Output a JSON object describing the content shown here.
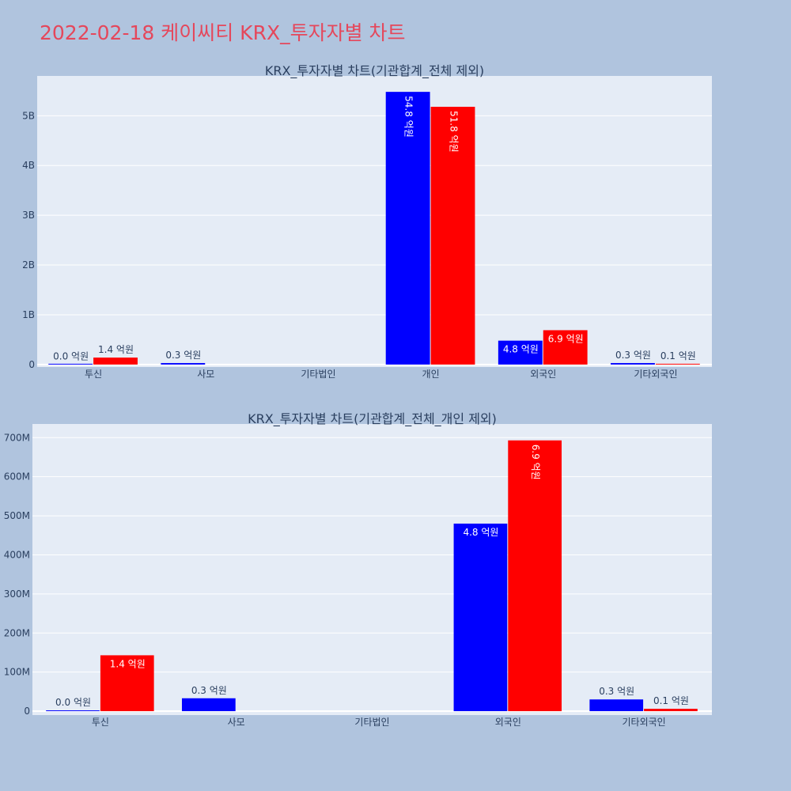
{
  "page": {
    "title": "2022-02-18 케이씨티 KRX_투자자별 차트"
  },
  "colors": {
    "background": "#b0c4de",
    "plot_bg": "#e5ecf6",
    "title": "#e5475b",
    "series_a": "#0000ff",
    "series_b": "#ff0000"
  },
  "chart_data": [
    {
      "type": "bar",
      "title": "KRX_투자자별 차트(기관합계_전체 제외)",
      "categories": [
        "투신",
        "사모",
        "기타법인",
        "개인",
        "외국인",
        "기타외국인"
      ],
      "series": [
        {
          "color": "#0000ff",
          "values": [
            2000000,
            30000000,
            null,
            5480000000,
            480000000,
            30000000
          ],
          "labels": [
            "0.0 억원",
            "0.3 억원",
            null,
            "54.8 억원",
            "4.8 억원",
            "0.3 억원"
          ]
        },
        {
          "color": "#ff0000",
          "values": [
            140000000,
            null,
            null,
            5180000000,
            690000000,
            10000000
          ],
          "labels": [
            "1.4 억원",
            null,
            null,
            "51.8 억원",
            "6.9 억원",
            "0.1 억원"
          ]
        }
      ],
      "ylim": [
        -50000000,
        5800000000
      ],
      "yticks": [
        0,
        1000000000,
        2000000000,
        3000000000,
        4000000000,
        5000000000
      ],
      "ytick_labels": [
        "0",
        "1B",
        "2B",
        "3B",
        "4B",
        "5B"
      ],
      "grid": true,
      "legend": "none"
    },
    {
      "type": "bar",
      "title": "KRX_투자자별 차트(기관합계_전체_개인 제외)",
      "categories": [
        "투신",
        "사모",
        "기타법인",
        "외국인",
        "기타외국인"
      ],
      "series": [
        {
          "color": "#0000ff",
          "values": [
            2000000,
            33000000,
            null,
            480000000,
            30000000
          ],
          "labels": [
            "0.0 억원",
            "0.3 억원",
            null,
            "4.8 억원",
            "0.3 억원"
          ]
        },
        {
          "color": "#ff0000",
          "values": [
            143000000,
            null,
            null,
            693000000,
            6000000
          ],
          "labels": [
            "1.4 억원",
            null,
            null,
            "6.9 억원",
            "0.1 억원"
          ]
        }
      ],
      "ylim": [
        -10000000,
        735000000
      ],
      "yticks": [
        0,
        100000000,
        200000000,
        300000000,
        400000000,
        500000000,
        600000000,
        700000000
      ],
      "ytick_labels": [
        "0",
        "100M",
        "200M",
        "300M",
        "400M",
        "500M",
        "600M",
        "700M"
      ],
      "grid": true,
      "legend": "none"
    }
  ]
}
